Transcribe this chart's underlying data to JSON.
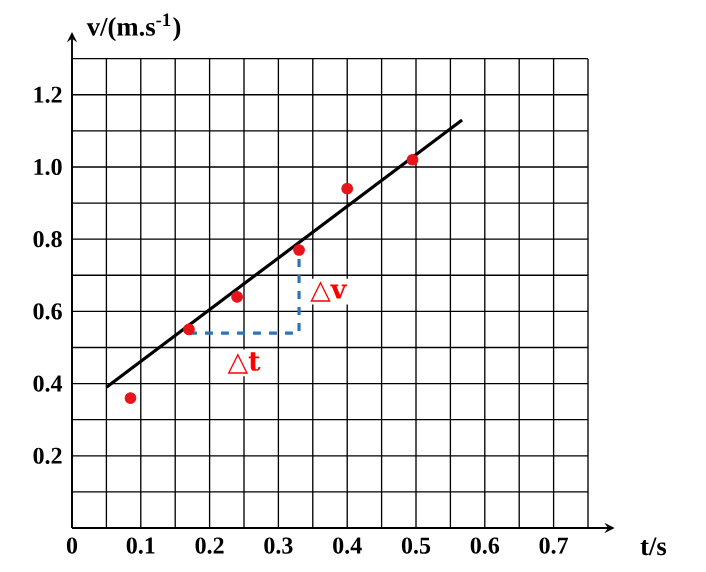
{
  "chart_data": {
    "type": "scatter",
    "xlabel": "t/s",
    "ylabel": "v/(m.s$^{-1}$)",
    "xlim": [
      0,
      0.75
    ],
    "ylim": [
      0,
      1.3
    ],
    "xticks": [
      0,
      {
        "value": 0.05,
        "label": null
      },
      0.1,
      {
        "value": 0.15,
        "label": null
      },
      0.2,
      {
        "value": 0.25,
        "label": null
      },
      0.3,
      {
        "value": 0.35,
        "label": null
      },
      0.4,
      {
        "value": 0.45,
        "label": null
      },
      0.5,
      {
        "value": 0.55,
        "label": null
      },
      0.6,
      {
        "value": 0.65,
        "label": null
      },
      0.7,
      {
        "value": 0.75,
        "label": null
      }
    ],
    "yticks": [
      {
        "value": 0.1,
        "label": null
      },
      0.2,
      {
        "value": 0.3,
        "label": null
      },
      0.4,
      {
        "value": 0.5,
        "label": null
      },
      0.6,
      {
        "value": 0.7,
        "label": null
      },
      0.8,
      {
        "value": 0.9,
        "label": null
      },
      {
        "value": 1.0,
        "label": "1.0"
      },
      {
        "value": 1.1,
        "label": null
      },
      1.2,
      {
        "value": 1.3,
        "label": null
      }
    ],
    "grid": true,
    "series": [
      {
        "marker": "circle",
        "color": "#e8141b",
        "x": [
          0.085,
          0.17,
          0.24,
          0.33,
          0.4,
          0.495
        ],
        "values": [
          0.36,
          0.55,
          0.64,
          0.77,
          0.94,
          1.02
        ]
      },
      {
        "type": "line",
        "color": "#000000",
        "x": [
          0.05,
          0.567
        ],
        "values": [
          0.39,
          1.13
        ],
        "line_style": "solid",
        "marker": "none"
      },
      {
        "type": "line",
        "color": "#2e75b6",
        "x": [
          0.17,
          0.33,
          0.33
        ],
        "values": [
          0.54,
          0.54,
          0.77
        ],
        "line_style": "dashed",
        "marker": "none"
      }
    ],
    "annotations": [
      "△v",
      "△t"
    ]
  }
}
